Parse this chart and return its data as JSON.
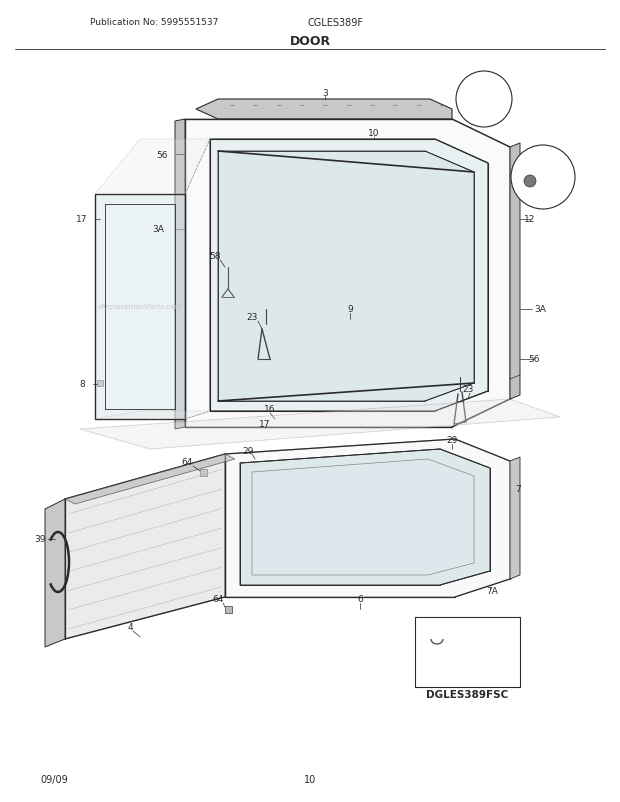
{
  "title": "DOOR",
  "pub_no": "Publication No: 5995551537",
  "model": "CGLES389F",
  "model2": "DGLES389FSC",
  "date": "09/09",
  "page": "10",
  "bg_color": "#ffffff",
  "line_color": "#2a2a2a",
  "watermark": "eReplacementParts.com",
  "figsize": [
    6.2,
    8.03
  ],
  "dpi": 100
}
